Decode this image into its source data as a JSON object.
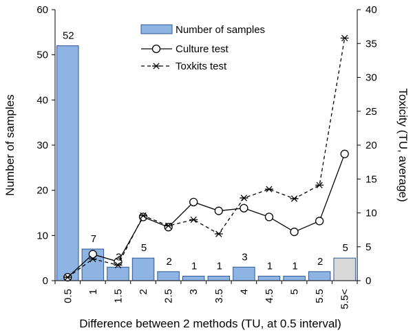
{
  "chart_data": {
    "type": "bar",
    "categories": [
      "0.5",
      "1",
      "1.5",
      "2",
      "2.5",
      "3",
      "3.5",
      "4",
      "4.5",
      "5",
      "5.5",
      "5.5<"
    ],
    "series": [
      {
        "name": "Number of samples",
        "type": "bar",
        "axis": "left",
        "values": [
          52,
          7,
          3,
          5,
          2,
          1,
          1,
          3,
          1,
          1,
          2,
          5
        ],
        "labels": [
          "52",
          "7",
          "3",
          "5",
          "2",
          "1",
          "1",
          "3",
          "1",
          "1",
          "2",
          "5"
        ]
      },
      {
        "name": "Culture test",
        "type": "line",
        "axis": "right",
        "marker": "circle",
        "line_style": "solid",
        "values": [
          0.5,
          3.9,
          2.8,
          9.4,
          7.9,
          11.6,
          10.3,
          10.7,
          9.4,
          7.2,
          8.8,
          18.7
        ]
      },
      {
        "name": "Toxkits test",
        "type": "line",
        "axis": "right",
        "marker": "asterisk",
        "line_style": "dashed",
        "values": [
          0.5,
          3.2,
          2.3,
          9.6,
          8.1,
          9.0,
          6.9,
          12.2,
          13.5,
          12.1,
          14.1,
          35.8
        ]
      }
    ],
    "xlabel": "Difference between 2 methods (TU, at 0.5 interval)",
    "ylabel": "Number of samples",
    "ylabel_right": "Toxicity (TU, average)",
    "ylim": [
      0,
      60
    ],
    "ylim_right": [
      0,
      40
    ],
    "yticks": [
      0,
      10,
      20,
      30,
      40,
      50,
      60
    ],
    "yticks_right": [
      0,
      5,
      10,
      15,
      20,
      25,
      30,
      35,
      40
    ],
    "grid": false,
    "legend_position": "top-center",
    "colors": {
      "bar_fill": "#8db4e2",
      "bar_stroke": "#2f5597",
      "last_bar_fill": "#d9d9d9",
      "line": "#000000"
    }
  }
}
